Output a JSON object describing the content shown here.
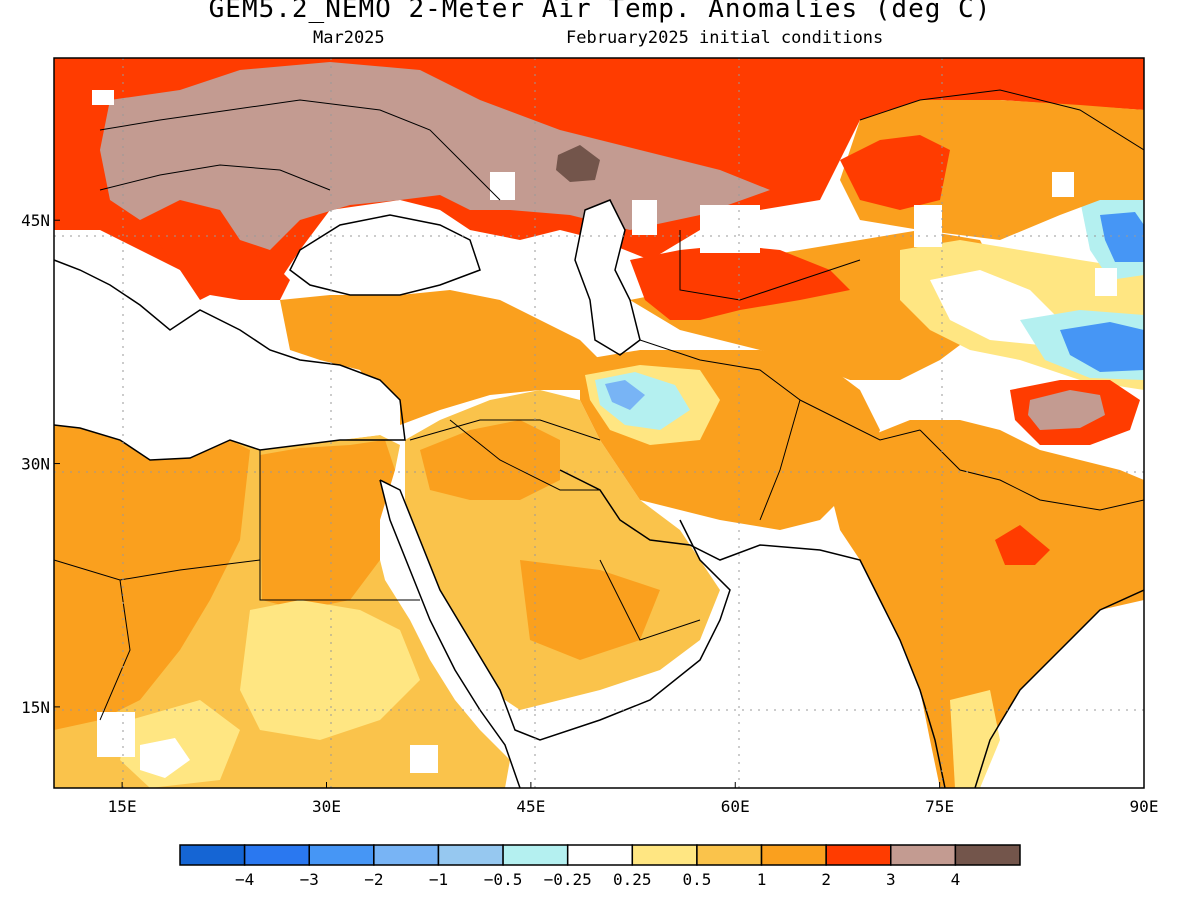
{
  "header": {
    "title": "GEM5.2_NEMO 2-Meter Air Temp. Anomalies (deg C)",
    "month": "Mar2025",
    "init": "February2025 initial conditions"
  },
  "axes": {
    "lat_ticks": [
      {
        "label": "45N",
        "lat": 45
      },
      {
        "label": "30N",
        "lat": 30
      },
      {
        "label": "15N",
        "lat": 15
      }
    ],
    "lon_ticks": [
      {
        "label": "15E",
        "lon": 15
      },
      {
        "label": "30E",
        "lon": 30
      },
      {
        "label": "45E",
        "lon": 45
      },
      {
        "label": "60E",
        "lon": 60
      },
      {
        "label": "75E",
        "lon": 75
      },
      {
        "label": "90E",
        "lon": 90
      }
    ],
    "lon_range": [
      10,
      90
    ],
    "lat_range": [
      10,
      55
    ]
  },
  "legend": {
    "colors": [
      "#1565d4",
      "#2a78f0",
      "#4696f5",
      "#78b4f5",
      "#96c8f0",
      "#b4f0f0",
      "#ffffff",
      "#ffe682",
      "#fac34b",
      "#faa01e",
      "#ff3c00",
      "#c39b91",
      "#73554b"
    ],
    "labels": [
      "-4",
      "-3",
      "-2",
      "-1",
      "-0.5",
      "-0.25",
      "0.25",
      "0.5",
      "1",
      "2",
      "3",
      "4"
    ]
  },
  "map_colors": {
    "ocean": "#ffffff",
    "very_warm": "#ff3c00",
    "warm": "#faa01e",
    "mild": "#fac34b",
    "slight": "#ffe682",
    "extreme": "#c39b91",
    "extreme2": "#73554b",
    "cool": "#78b4f5",
    "cool2": "#b4f0f0",
    "cold": "#4696f5"
  }
}
